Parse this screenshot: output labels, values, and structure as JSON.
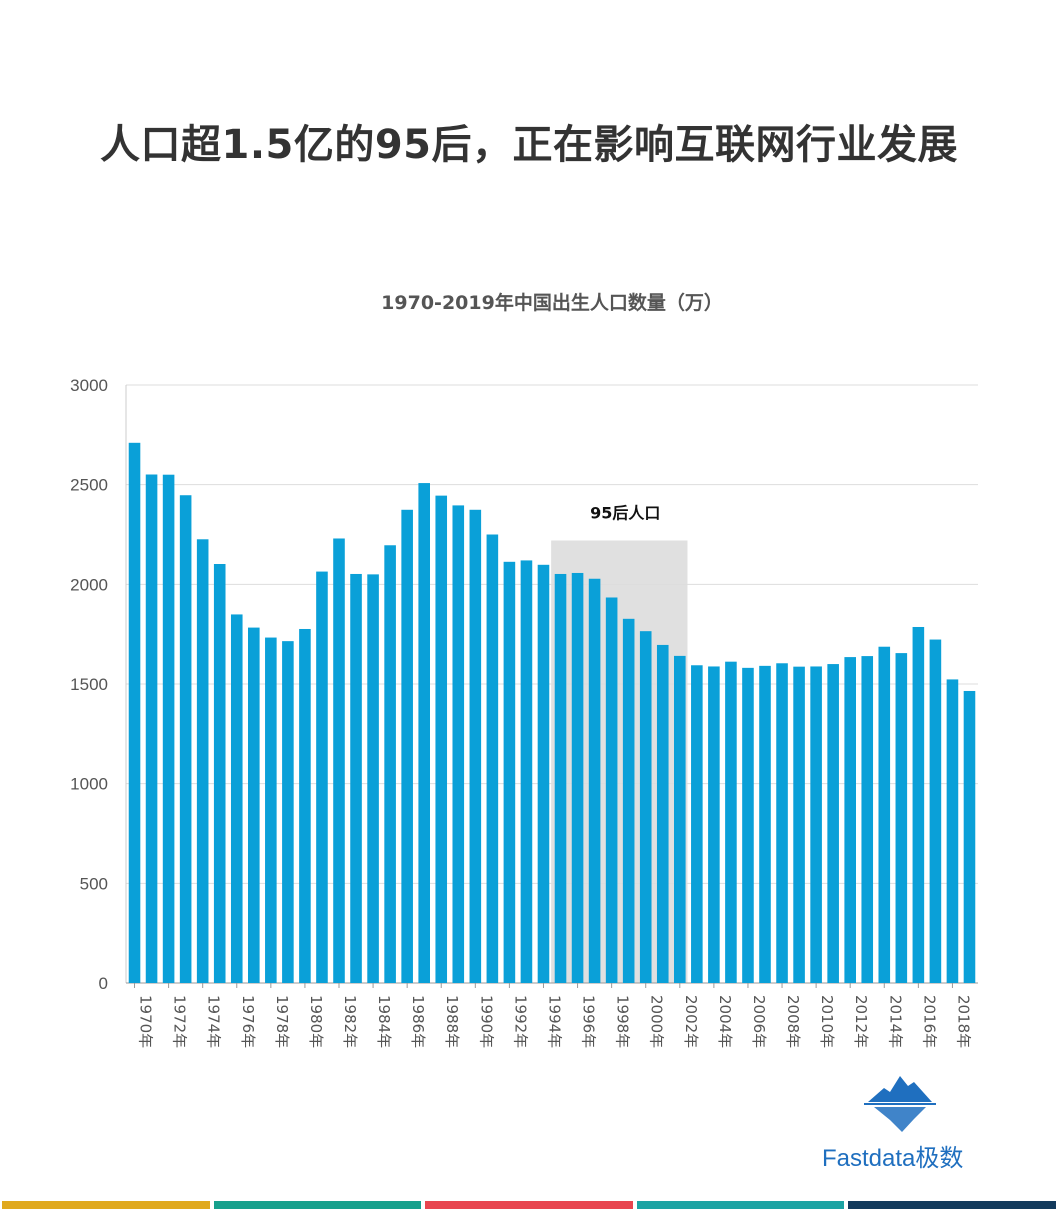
{
  "headline": "人口超1.5亿的95后，正在影响互联网行业发展",
  "brand": {
    "name": "Fastdata极数",
    "logo_icon": "iceberg-icon",
    "color": "#1f6fbf"
  },
  "footer_stripe_colors": [
    "#e0a91e",
    "#16a08c",
    "#e8454f",
    "#1ca3a3",
    "#123a5c"
  ],
  "chart_data": {
    "type": "bar",
    "title": "1970-2019年中国出生人口数量（万）",
    "bar_color": "#0aa0d8",
    "highlight": {
      "label": "95后人口",
      "from": "1995",
      "to": "2002",
      "to_value": 2220,
      "color": "#e0e0e0"
    },
    "ylim": [
      0,
      3000
    ],
    "yticks": [
      0,
      500,
      1000,
      1500,
      2000,
      2500,
      3000
    ],
    "grid": true,
    "tick_suffix": "年",
    "categories": [
      "1970",
      "1971",
      "1972",
      "1973",
      "1974",
      "1975",
      "1976",
      "1977",
      "1978",
      "1979",
      "1980",
      "1981",
      "1982",
      "1983",
      "1984",
      "1985",
      "1986",
      "1987",
      "1988",
      "1989",
      "1990",
      "1991",
      "1992",
      "1993",
      "1994",
      "1995",
      "1996",
      "1997",
      "1998",
      "1999",
      "2000",
      "2001",
      "2002",
      "2003",
      "2004",
      "2005",
      "2006",
      "2007",
      "2008",
      "2009",
      "2010",
      "2011",
      "2012",
      "2013",
      "2014",
      "2015",
      "2016",
      "2017",
      "2018",
      "2019"
    ],
    "tick_labels": [
      "1970",
      "1972",
      "1974",
      "1976",
      "1978",
      "1980",
      "1982",
      "1984",
      "1986",
      "1988",
      "1990",
      "1992",
      "1994",
      "1996",
      "1998",
      "2000",
      "2002",
      "2004",
      "2006",
      "2008",
      "2010",
      "2012",
      "2014",
      "2016",
      "2018"
    ],
    "values": [
      2710,
      2551,
      2550,
      2447,
      2226,
      2102,
      1849,
      1783,
      1733,
      1715,
      1776,
      2064,
      2230,
      2052,
      2050,
      2196,
      2374,
      2508,
      2445,
      2396,
      2374,
      2250,
      2113,
      2120,
      2098,
      2052,
      2057,
      2028,
      1934,
      1827,
      1765,
      1696,
      1641,
      1594,
      1588,
      1612,
      1581,
      1591,
      1604,
      1587,
      1588,
      1600,
      1635,
      1640,
      1687,
      1655,
      1786,
      1723,
      1523,
      1465
    ]
  }
}
